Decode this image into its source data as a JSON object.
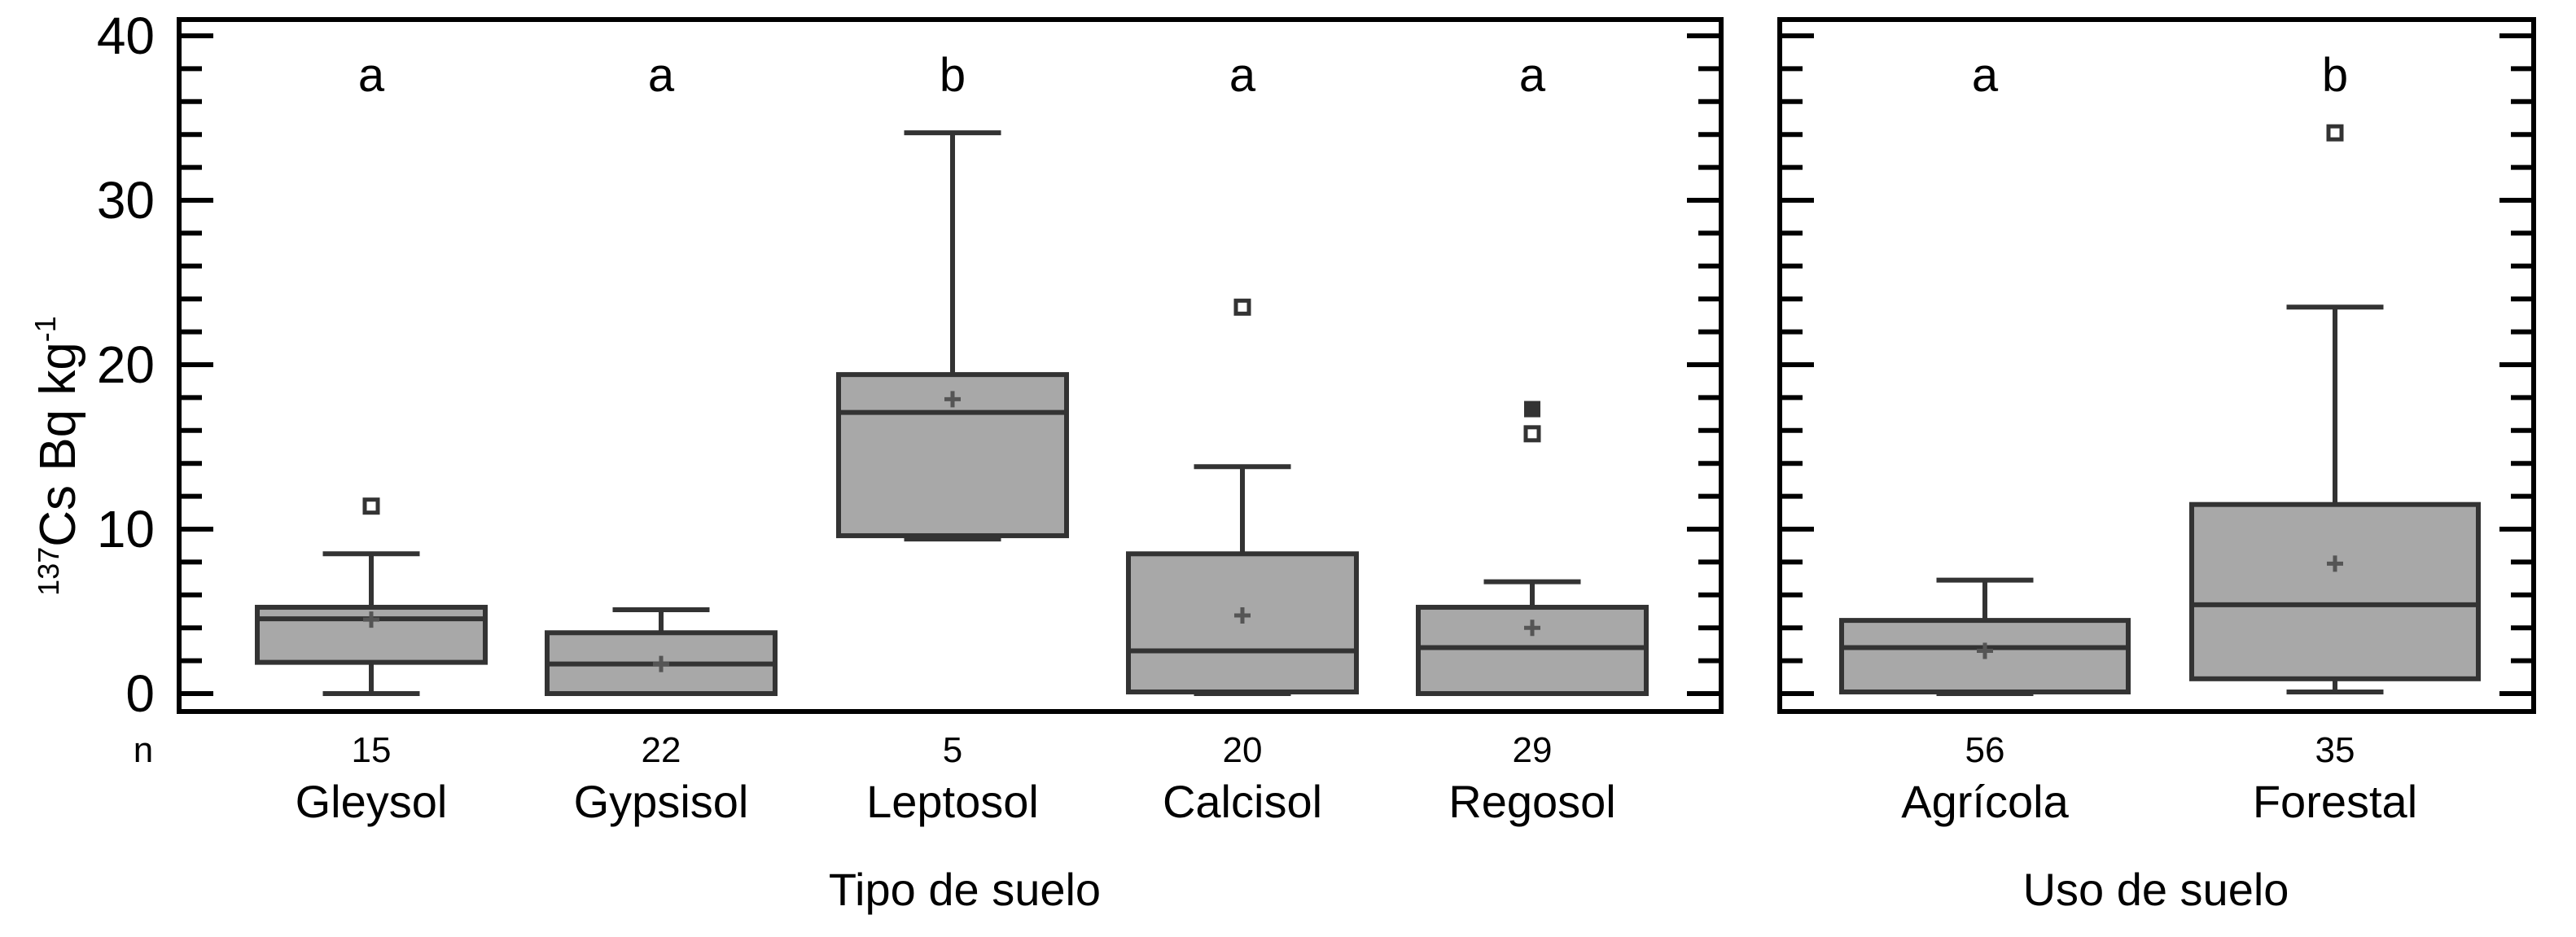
{
  "chart_data": {
    "type": "boxplot",
    "ylabel_iso": "137",
    "ylabel_main": "Cs  Bq kg",
    "ylabel_exp": "-1",
    "ylim": [
      0,
      40
    ],
    "yticks": [
      "0",
      "10",
      "20",
      "30",
      "40"
    ],
    "n_label": "n",
    "panels": [
      {
        "xlabel": "Tipo de suelo",
        "groups": [
          {
            "name": "Gleysol",
            "n": "15",
            "letter": "a",
            "min": 0,
            "q1": 1.9,
            "median": 4.55,
            "q3": 5.25,
            "max": 8.5,
            "mean": 4.5,
            "outliers": [
              11.4
            ],
            "filled_outliers": []
          },
          {
            "name": "Gypsisol",
            "n": "22",
            "letter": "a",
            "min": 0,
            "q1": 0,
            "median": 1.8,
            "q3": 3.7,
            "max": 5.1,
            "mean": 1.8,
            "outliers": [],
            "filled_outliers": []
          },
          {
            "name": "Leptosol",
            "n": "5",
            "letter": "b",
            "min": 9.4,
            "q1": 9.6,
            "median": 17.1,
            "q3": 19.4,
            "max": 34.1,
            "mean": 17.9,
            "outliers": [],
            "filled_outliers": []
          },
          {
            "name": "Calcisol",
            "n": "20",
            "letter": "a",
            "min": 0,
            "q1": 0.1,
            "median": 2.6,
            "q3": 8.5,
            "max": 13.8,
            "mean": 4.75,
            "outliers": [
              23.5
            ],
            "filled_outliers": []
          },
          {
            "name": "Regosol",
            "n": "29",
            "letter": "a",
            "min": 0,
            "q1": 0,
            "median": 2.8,
            "q3": 5.25,
            "max": 6.8,
            "mean": 4.0,
            "outliers": [
              15.8
            ],
            "filled_outliers": [
              17.3
            ]
          }
        ]
      },
      {
        "xlabel": "Uso de suelo",
        "groups": [
          {
            "name": "Agrícola",
            "n": "56",
            "letter": "a",
            "min": 0,
            "q1": 0.1,
            "median": 2.8,
            "q3": 4.45,
            "max": 6.9,
            "mean": 2.6,
            "outliers": [],
            "filled_outliers": []
          },
          {
            "name": "Forestal",
            "n": "35",
            "letter": "b",
            "min": 0.1,
            "q1": 0.9,
            "median": 5.4,
            "q3": 11.5,
            "max": 23.5,
            "mean": 7.9,
            "outliers": [
              34.1
            ],
            "filled_outliers": []
          }
        ]
      }
    ],
    "colors": {
      "box_fill": "#a8a8a8",
      "box_stroke": "#333333",
      "frame": "#000000"
    }
  }
}
